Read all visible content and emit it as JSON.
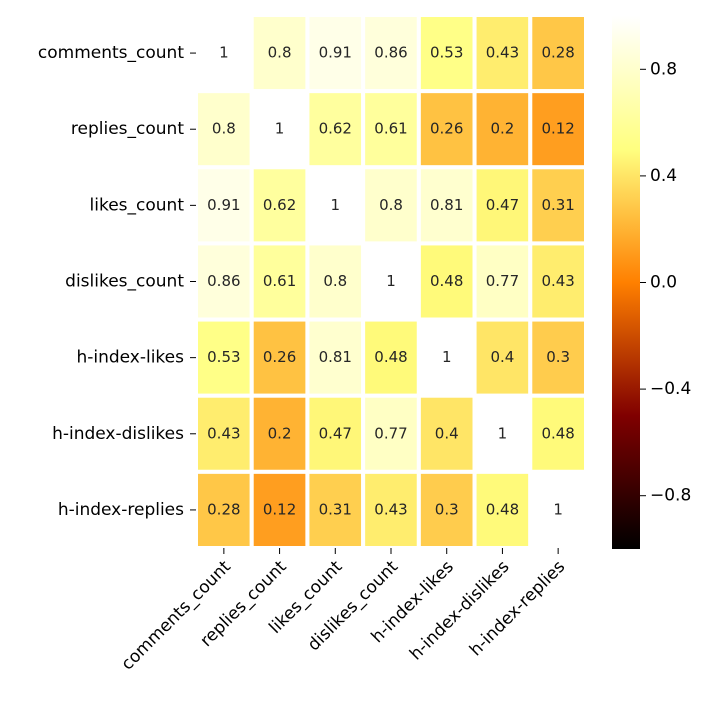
{
  "chart_data": {
    "type": "heatmap",
    "cmap": "afmhot",
    "x_categories": [
      "comments_count",
      "replies_count",
      "likes_count",
      "dislikes_count",
      "h-index-likes",
      "h-index-dislikes",
      "h-index-replies"
    ],
    "y_categories": [
      "comments_count",
      "replies_count",
      "likes_count",
      "dislikes_count",
      "h-index-likes",
      "h-index-dislikes",
      "h-index-replies"
    ],
    "values": [
      [
        1,
        0.8,
        0.91,
        0.86,
        0.53,
        0.43,
        0.28
      ],
      [
        0.8,
        1,
        0.62,
        0.61,
        0.26,
        0.2,
        0.12
      ],
      [
        0.91,
        0.62,
        1,
        0.8,
        0.81,
        0.47,
        0.31
      ],
      [
        0.86,
        0.61,
        0.8,
        1,
        0.48,
        0.77,
        0.43
      ],
      [
        0.53,
        0.26,
        0.81,
        0.48,
        1,
        0.4,
        0.3
      ],
      [
        0.43,
        0.2,
        0.47,
        0.77,
        0.4,
        1,
        0.48
      ],
      [
        0.28,
        0.12,
        0.31,
        0.43,
        0.3,
        0.48,
        1
      ]
    ],
    "vlim": [
      -1,
      1
    ],
    "colorbar_ticks": [
      0.8,
      0.4,
      {
        "value": 0,
        "label": "0.0"
      },
      {
        "value": -0.4,
        "label": "−0.4"
      },
      {
        "value": -0.8,
        "label": "−0.8"
      }
    ]
  }
}
